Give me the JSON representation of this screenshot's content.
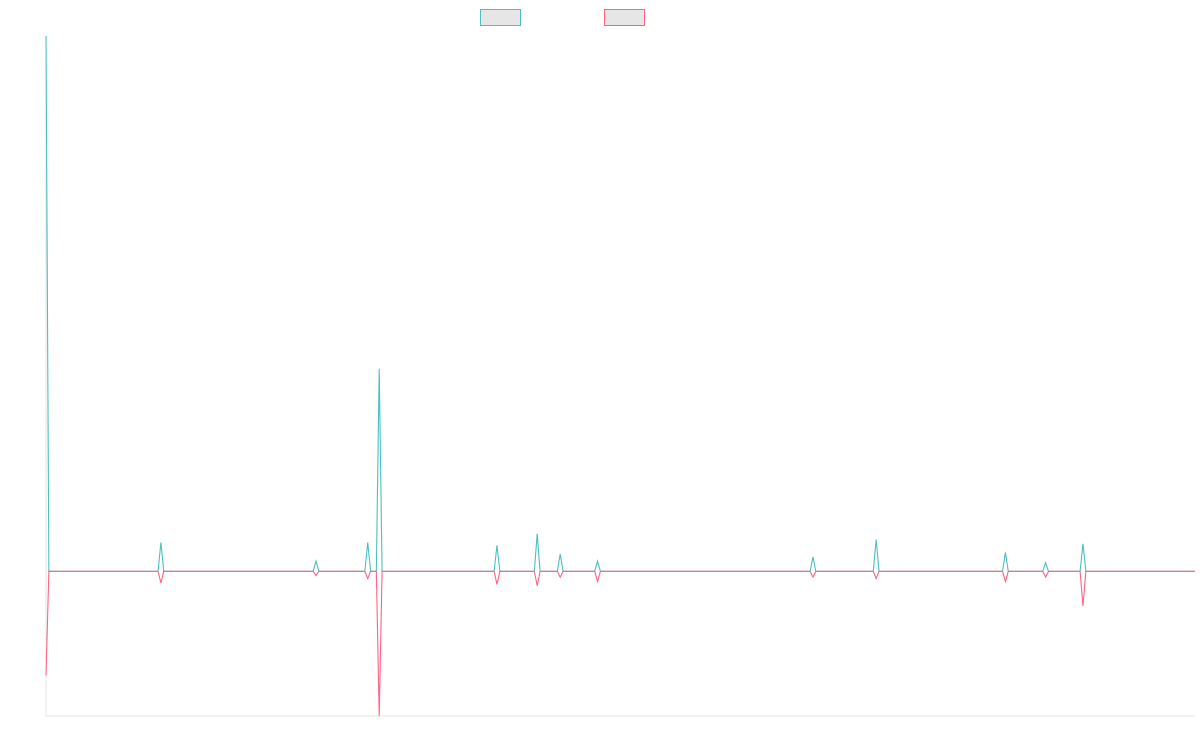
{
  "chart_data": {
    "type": "line",
    "title": "",
    "xlabel": "",
    "ylabel": "",
    "grid": false,
    "legend": "top-center",
    "x": [
      0,
      1,
      2,
      3,
      4,
      5,
      6,
      7,
      8,
      9,
      10,
      11,
      12,
      13,
      14,
      15,
      16,
      17,
      18,
      19,
      20,
      21,
      22,
      23,
      24,
      25,
      26,
      27,
      28,
      29,
      30,
      31,
      32,
      33,
      34,
      35,
      36,
      37,
      38,
      39,
      40,
      41,
      42,
      43,
      44,
      45,
      46,
      47,
      48,
      49,
      50,
      51,
      52,
      53,
      54,
      55,
      56,
      57,
      58,
      59,
      60,
      61,
      62,
      63,
      64,
      65,
      66,
      67,
      68,
      69,
      70,
      71,
      72,
      73,
      74,
      75,
      76,
      77,
      78,
      79,
      80,
      81,
      82,
      83,
      84,
      85,
      86,
      87,
      88,
      89,
      90,
      91,
      92,
      93,
      94,
      95,
      96,
      97,
      98,
      99,
      100,
      101,
      102,
      103,
      104,
      105,
      106,
      107,
      108,
      109,
      110,
      111,
      112,
      113,
      114,
      115,
      116,
      117,
      118,
      119,
      120,
      121,
      122,
      123,
      124,
      125,
      126,
      127,
      128,
      129,
      130,
      131,
      132,
      133,
      134,
      135,
      136,
      137,
      138,
      139,
      140,
      141,
      142,
      143,
      144,
      145,
      146,
      147,
      148,
      149,
      150,
      151,
      152,
      153,
      154,
      155,
      156,
      157,
      158,
      159,
      160,
      161,
      162,
      163,
      164,
      165,
      166,
      167,
      168,
      169,
      170,
      171,
      172,
      173,
      174,
      175,
      176,
      177,
      178,
      179,
      180,
      181,
      182,
      183,
      184,
      185,
      186,
      187,
      188,
      189,
      190,
      191,
      192,
      193,
      194,
      195,
      196,
      197,
      198,
      199,
      200,
      201,
      202,
      203,
      204,
      205,
      206,
      207,
      208,
      209,
      210,
      211,
      212,
      213,
      214,
      215,
      216,
      217,
      218,
      219,
      220,
      221,
      222,
      223,
      224,
      225,
      226,
      227,
      228,
      229,
      230,
      231,
      232,
      233,
      234,
      235,
      236,
      237,
      238,
      239,
      240,
      241,
      242,
      243,
      244,
      245,
      246,
      247,
      248,
      249,
      250,
      251,
      252,
      253,
      254,
      255,
      256,
      257,
      258,
      259,
      260,
      261,
      262,
      263,
      264,
      265,
      266,
      267,
      268,
      269,
      270,
      271,
      272,
      273,
      274,
      275,
      276,
      277,
      278,
      279,
      280,
      281,
      282,
      283,
      284,
      285,
      286,
      287,
      288,
      289,
      290,
      291,
      292,
      293,
      294,
      295,
      296,
      297,
      298,
      299,
      300,
      301,
      302,
      303,
      304,
      305,
      306,
      307,
      308,
      309,
      310,
      311,
      312,
      313,
      314,
      315,
      316,
      317,
      318,
      319,
      320,
      321,
      322,
      323,
      324,
      325,
      326,
      327,
      328,
      329,
      330,
      331,
      332,
      333,
      334,
      335,
      336,
      337,
      338,
      339,
      340,
      341,
      342,
      343,
      344,
      345,
      346,
      347,
      348,
      349,
      350,
      351,
      352,
      353,
      354,
      355,
      356,
      357,
      358,
      359,
      360,
      361,
      362,
      363,
      364,
      365,
      366,
      367,
      368,
      369,
      370,
      371,
      372,
      373,
      374,
      375,
      376,
      377,
      378,
      379,
      380,
      381,
      382,
      383,
      384,
      385,
      386,
      387,
      388,
      389,
      390,
      391,
      392,
      393,
      394,
      395,
      396,
      397,
      398,
      399,
      400
    ],
    "xlim": [
      0,
      400
    ],
    "ylim": [
      -1,
      3.7
    ],
    "series": [
      {
        "name": "",
        "color": "#4bc0c0",
        "fill": "#e6e6e6",
        "values": [
          3.7,
          0,
          0,
          0,
          0,
          0,
          0,
          0,
          0,
          0,
          0,
          0,
          0,
          0,
          0,
          0,
          0,
          0,
          0,
          0,
          0,
          0,
          0,
          0,
          0,
          0,
          0,
          0,
          0,
          0,
          0,
          0,
          0,
          0,
          0,
          0,
          0,
          0,
          0,
          0,
          0.2,
          0,
          0,
          0,
          0,
          0,
          0,
          0,
          0,
          0,
          0,
          0,
          0,
          0,
          0,
          0,
          0,
          0,
          0,
          0,
          0,
          0,
          0,
          0,
          0,
          0,
          0,
          0,
          0,
          0,
          0,
          0,
          0,
          0,
          0,
          0,
          0,
          0,
          0,
          0,
          0,
          0,
          0,
          0,
          0,
          0,
          0,
          0,
          0,
          0,
          0,
          0,
          0,
          0,
          0.07,
          0,
          0,
          0,
          0,
          0,
          0,
          0,
          0,
          0,
          0,
          0,
          0,
          0,
          0,
          0,
          0,
          0,
          0.2,
          0,
          0,
          0,
          1.4,
          0,
          0,
          0,
          0,
          0,
          0,
          0,
          0,
          0,
          0,
          0,
          0,
          0,
          0,
          0,
          0,
          0,
          0,
          0,
          0,
          0,
          0,
          0,
          0,
          0,
          0,
          0,
          0,
          0,
          0,
          0,
          0,
          0,
          0,
          0,
          0,
          0,
          0,
          0,
          0,
          0.18,
          0,
          0,
          0,
          0,
          0,
          0,
          0,
          0,
          0,
          0,
          0,
          0,
          0,
          0.26,
          0,
          0,
          0,
          0,
          0,
          0,
          0,
          0.12,
          0,
          0,
          0,
          0,
          0,
          0,
          0,
          0,
          0,
          0,
          0,
          0,
          0.07,
          0,
          0,
          0,
          0,
          0,
          0,
          0,
          0,
          0,
          0,
          0,
          0,
          0,
          0,
          0,
          0,
          0,
          0,
          0,
          0,
          0,
          0,
          0,
          0,
          0,
          0,
          0,
          0,
          0,
          0,
          0,
          0,
          0,
          0,
          0,
          0,
          0,
          0,
          0,
          0,
          0,
          0,
          0,
          0,
          0,
          0,
          0,
          0,
          0,
          0,
          0,
          0,
          0,
          0,
          0,
          0,
          0,
          0,
          0,
          0,
          0,
          0,
          0,
          0,
          0,
          0,
          0,
          0,
          0,
          0,
          0,
          0,
          0,
          0,
          0.1,
          0,
          0,
          0,
          0,
          0,
          0,
          0,
          0,
          0,
          0,
          0,
          0,
          0,
          0,
          0,
          0,
          0,
          0,
          0,
          0,
          0,
          0.22,
          0,
          0,
          0,
          0,
          0,
          0,
          0,
          0,
          0,
          0,
          0,
          0,
          0,
          0,
          0,
          0,
          0,
          0,
          0,
          0,
          0,
          0,
          0,
          0,
          0,
          0,
          0,
          0,
          0,
          0,
          0,
          0,
          0,
          0,
          0,
          0,
          0,
          0,
          0,
          0,
          0,
          0,
          0,
          0,
          0.13,
          0,
          0,
          0,
          0,
          0,
          0,
          0,
          0,
          0,
          0,
          0,
          0,
          0,
          0.06,
          0,
          0,
          0,
          0,
          0,
          0,
          0,
          0,
          0,
          0,
          0,
          0,
          0.19,
          0,
          0,
          0,
          0,
          0,
          0,
          0,
          0,
          0,
          0,
          0,
          0,
          0,
          0,
          0,
          0,
          0,
          0,
          0,
          0,
          0,
          0,
          0,
          0,
          0,
          0,
          0,
          0,
          0,
          0,
          0,
          0,
          0,
          0,
          0,
          0,
          0,
          0,
          0
        ]
      },
      {
        "name": "",
        "color": "#ff6384",
        "fill": "#e6e6e6",
        "values": [
          -0.72,
          0,
          0,
          0,
          0,
          0,
          0,
          0,
          0,
          0,
          0,
          0,
          0,
          0,
          0,
          0,
          0,
          0,
          0,
          0,
          0,
          0,
          0,
          0,
          0,
          0,
          0,
          0,
          0,
          0,
          0,
          0,
          0,
          0,
          0,
          0,
          0,
          0,
          0,
          0,
          -0.08,
          0,
          0,
          0,
          0,
          0,
          0,
          0,
          0,
          0,
          0,
          0,
          0,
          0,
          0,
          0,
          0,
          0,
          0,
          0,
          0,
          0,
          0,
          0,
          0,
          0,
          0,
          0,
          0,
          0,
          0,
          0,
          0,
          0,
          0,
          0,
          0,
          0,
          0,
          0,
          0,
          0,
          0,
          0,
          0,
          0,
          0,
          0,
          0,
          0,
          0,
          0,
          0,
          0,
          -0.03,
          0,
          0,
          0,
          0,
          0,
          0,
          0,
          0,
          0,
          0,
          0,
          0,
          0,
          0,
          0,
          0,
          0,
          -0.05,
          0,
          0,
          0,
          -1.0,
          0,
          0,
          0,
          0,
          0,
          0,
          0,
          0,
          0,
          0,
          0,
          0,
          0,
          0,
          0,
          0,
          0,
          0,
          0,
          0,
          0,
          0,
          0,
          0,
          0,
          0,
          0,
          0,
          0,
          0,
          0,
          0,
          0,
          0,
          0,
          0,
          0,
          0,
          0,
          0,
          -0.09,
          0,
          0,
          0,
          0,
          0,
          0,
          0,
          0,
          0,
          0,
          0,
          0,
          0,
          -0.1,
          0,
          0,
          0,
          0,
          0,
          0,
          0,
          -0.04,
          0,
          0,
          0,
          0,
          0,
          0,
          0,
          0,
          0,
          0,
          0,
          0,
          -0.07,
          0,
          0,
          0,
          0,
          0,
          0,
          0,
          0,
          0,
          0,
          0,
          0,
          0,
          0,
          0,
          0,
          0,
          0,
          0,
          0,
          0,
          0,
          0,
          0,
          0,
          0,
          0,
          0,
          0,
          0,
          0,
          0,
          0,
          0,
          0,
          0,
          0,
          0,
          0,
          0,
          0,
          0,
          0,
          0,
          0,
          0,
          0,
          0,
          0,
          0,
          0,
          0,
          0,
          0,
          0,
          0,
          0,
          0,
          0,
          0,
          0,
          0,
          0,
          0,
          0,
          0,
          0,
          0,
          0,
          0,
          0,
          0,
          0,
          0,
          -0.04,
          0,
          0,
          0,
          0,
          0,
          0,
          0,
          0,
          0,
          0,
          0,
          0,
          0,
          0,
          0,
          0,
          0,
          0,
          0,
          0,
          0,
          -0.05,
          0,
          0,
          0,
          0,
          0,
          0,
          0,
          0,
          0,
          0,
          0,
          0,
          0,
          0,
          0,
          0,
          0,
          0,
          0,
          0,
          0,
          0,
          0,
          0,
          0,
          0,
          0,
          0,
          0,
          0,
          0,
          0,
          0,
          0,
          0,
          0,
          0,
          0,
          0,
          0,
          0,
          0,
          0,
          0,
          -0.07,
          0,
          0,
          0,
          0,
          0,
          0,
          0,
          0,
          0,
          0,
          0,
          0,
          0,
          -0.04,
          0,
          0,
          0,
          0,
          0,
          0,
          0,
          0,
          0,
          0,
          0,
          0,
          -0.24,
          0,
          0,
          0,
          0,
          0,
          0,
          0,
          0,
          0,
          0,
          0,
          0,
          0,
          0,
          0,
          0,
          0,
          0,
          0,
          0,
          0,
          0,
          0,
          0,
          0,
          0,
          0,
          0,
          0,
          0,
          0,
          0,
          0,
          0,
          0,
          0,
          0,
          0,
          0
        ]
      }
    ]
  }
}
